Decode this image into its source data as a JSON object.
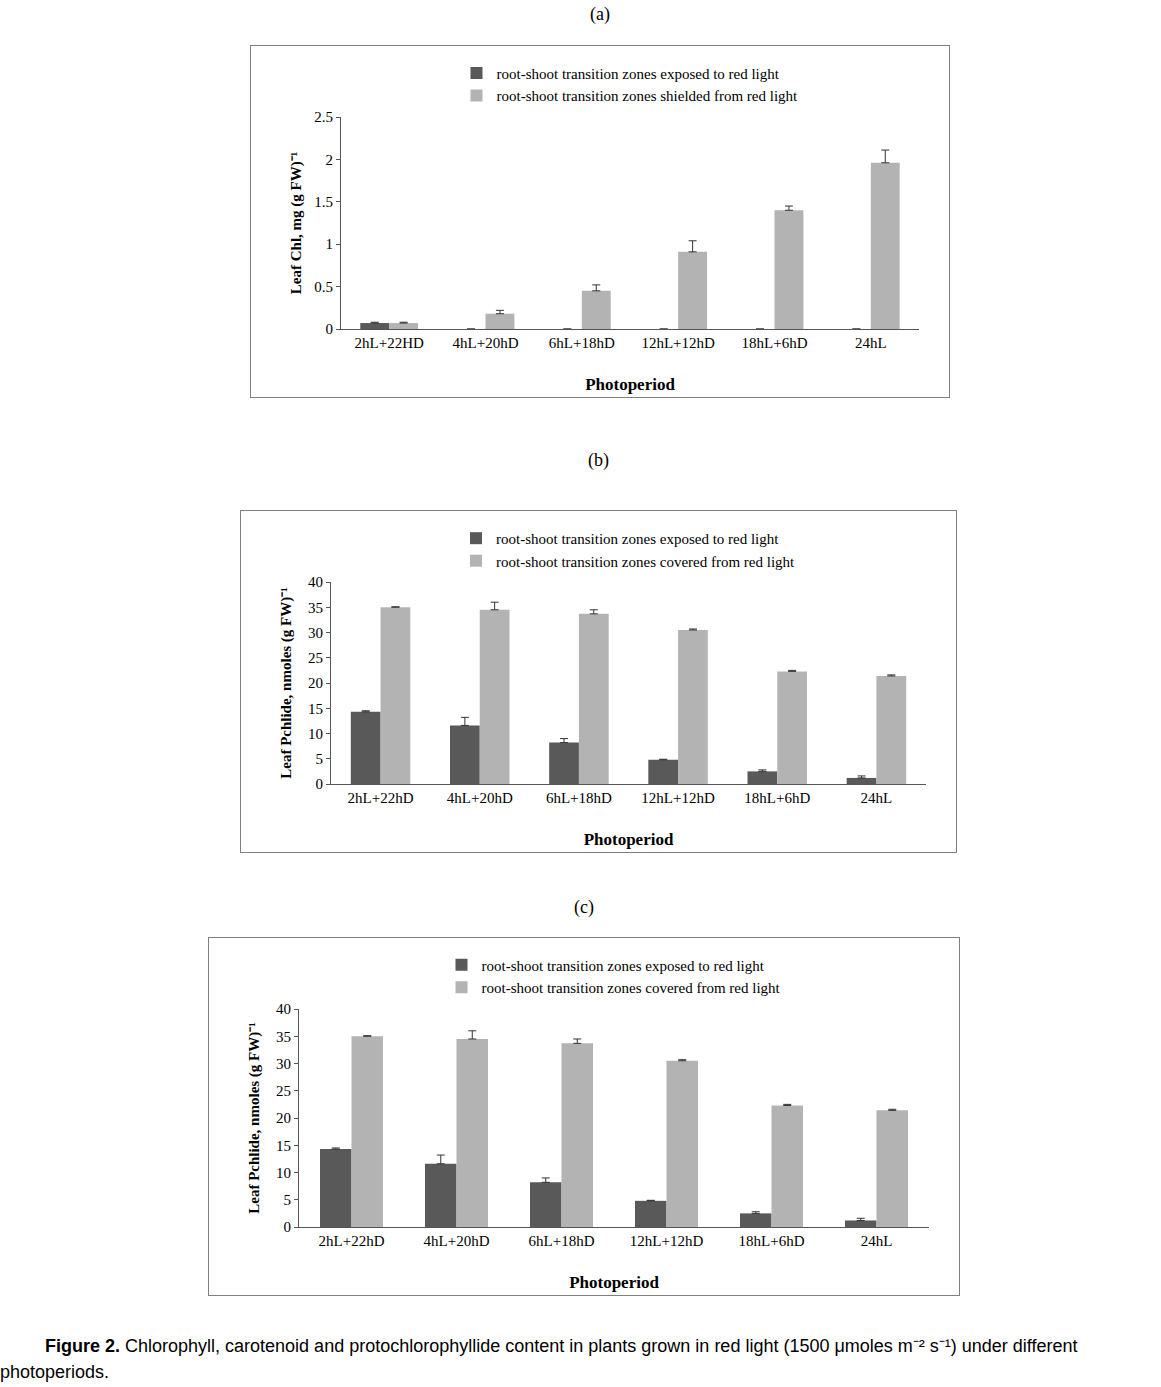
{
  "chart_data": [
    {
      "type": "bar",
      "title": "(a)",
      "x_label": "Photoperiod",
      "y_label": "Leaf Chl, mg (g FW)⁻¹",
      "categories": [
        "2hL+22HD",
        "4hL+20hD",
        "6hL+18hD",
        "12hL+12hD",
        "18hL+6hD",
        "24hL"
      ],
      "series": [
        {
          "name": "root-shoot transition zones exposed to red light",
          "color": "#595959",
          "values": [
            0.07,
            0,
            0,
            0,
            0,
            0
          ],
          "errors": [
            0.01,
            0,
            0,
            0,
            0,
            0
          ]
        },
        {
          "name": "root-shoot transition zones shielded from red light",
          "color": "#b3b3b3",
          "values": [
            0.07,
            0.18,
            0.45,
            0.91,
            1.4,
            1.96
          ],
          "errors": [
            0.01,
            0.04,
            0.07,
            0.13,
            0.05,
            0.15
          ]
        }
      ],
      "ylim": [
        0,
        2.5
      ],
      "yticks": [
        0,
        0.5,
        1,
        1.5,
        2,
        2.5
      ],
      "grid": false,
      "legend": "top"
    },
    {
      "type": "bar",
      "title": "(b)",
      "x_label": "Photoperiod",
      "y_label": "Leaf Pchlide, nmoles (g FW)⁻¹",
      "categories": [
        "2hL+22hD",
        "4hL+20hD",
        "6hL+18hD",
        "12hL+12hD",
        "18hL+6hD",
        "24hL"
      ],
      "series": [
        {
          "name": "root-shoot transition zones exposed to red light",
          "color": "#595959",
          "values": [
            14.3,
            11.6,
            8.2,
            4.8,
            2.5,
            1.2
          ],
          "errors": [
            0.2,
            1.6,
            0.8,
            0.1,
            0.3,
            0.4
          ]
        },
        {
          "name": "root-shoot transition zones covered from red light",
          "color": "#b3b3b3",
          "values": [
            35.0,
            34.5,
            33.7,
            30.5,
            22.3,
            21.4
          ],
          "errors": [
            0.1,
            1.5,
            0.8,
            0.2,
            0.2,
            0.2
          ]
        }
      ],
      "ylim": [
        0,
        40
      ],
      "yticks": [
        0,
        5,
        10,
        15,
        20,
        25,
        30,
        35,
        40
      ],
      "grid": false,
      "legend": "top"
    },
    {
      "type": "bar",
      "title": "(c)",
      "x_label": "Photoperiod",
      "y_label": "Leaf Pchlide, nmoles (g FW)⁻¹",
      "categories": [
        "2hL+22hD",
        "4hL+20hD",
        "6hL+18hD",
        "12hL+12hD",
        "18hL+6hD",
        "24hL"
      ],
      "series": [
        {
          "name": "root-shoot transition zones exposed to red light",
          "color": "#595959",
          "values": [
            14.3,
            11.6,
            8.2,
            4.8,
            2.5,
            1.2
          ],
          "errors": [
            0.2,
            1.6,
            0.8,
            0.1,
            0.3,
            0.4
          ]
        },
        {
          "name": "root-shoot transition zones covered from red light",
          "color": "#b3b3b3",
          "values": [
            35.0,
            34.5,
            33.7,
            30.5,
            22.3,
            21.4
          ],
          "errors": [
            0.1,
            1.5,
            0.8,
            0.2,
            0.2,
            0.2
          ]
        }
      ],
      "ylim": [
        0,
        40
      ],
      "yticks": [
        0,
        5,
        10,
        15,
        20,
        25,
        30,
        35,
        40
      ],
      "grid": false,
      "legend": "top"
    }
  ],
  "caption": {
    "label": "Figure 2.",
    "text": "Chlorophyll, carotenoid and protochlorophyllide content in plants grown in red light (1500 μmoles m⁻² s⁻¹) under different photoperiods."
  }
}
